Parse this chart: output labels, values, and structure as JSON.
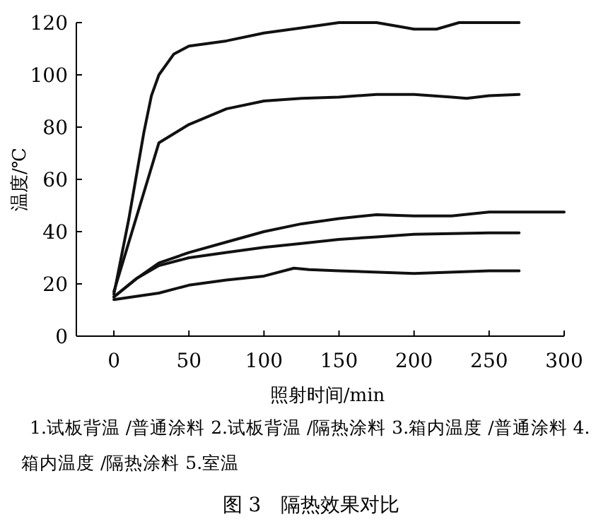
{
  "chart_data": {
    "type": "line",
    "title": "图 3　隔热效果对比",
    "xlabel": "照射时间/min",
    "ylabel": "温度/℃",
    "annotations": [
      "1.试板背温 /普通涂料 2.试板背温 /隔热涂料 3.箱内温度 /普通涂料 4.箱内温度 /隔热涂料 5.室温"
    ],
    "xlim": [
      -25,
      300
    ],
    "xticks": [
      0,
      50,
      100,
      150,
      200,
      250,
      300
    ],
    "ylim": [
      0,
      120
    ],
    "yticks": [
      0,
      20,
      40,
      60,
      80,
      100,
      120
    ],
    "grid": false,
    "marker": "none",
    "line_style": "solid",
    "series": [
      {
        "color": "#111111",
        "x": [
          0,
          10,
          20,
          25,
          30,
          40,
          50,
          75,
          100,
          125,
          150,
          175,
          190,
          200,
          215,
          230,
          250,
          270
        ],
        "values": [
          16,
          45,
          78,
          92,
          100,
          108,
          111,
          113,
          116,
          118,
          120,
          120,
          118.5,
          117.5,
          117.5,
          120,
          120,
          120
        ]
      },
      {
        "color": "#111111",
        "x": [
          0,
          30,
          50,
          75,
          100,
          125,
          150,
          175,
          200,
          225,
          235,
          250,
          270
        ],
        "values": [
          17,
          74,
          81,
          87,
          90,
          91,
          91.5,
          92.5,
          92.5,
          91.5,
          91,
          92,
          92.5
        ]
      },
      {
        "color": "#111111",
        "x": [
          0,
          15,
          30,
          50,
          75,
          100,
          125,
          150,
          175,
          200,
          225,
          250,
          300
        ],
        "values": [
          15,
          22,
          28,
          32,
          36,
          40,
          43,
          45,
          46.5,
          46,
          46,
          47.5,
          47.5
        ]
      },
      {
        "color": "#111111",
        "x": [
          0,
          15,
          30,
          50,
          75,
          100,
          125,
          150,
          175,
          200,
          250,
          270
        ],
        "values": [
          15,
          22,
          27,
          30,
          32,
          34,
          35.5,
          37,
          38,
          39,
          39.5,
          39.5
        ]
      },
      {
        "color": "#111111",
        "x": [
          0,
          30,
          50,
          75,
          100,
          120,
          130,
          150,
          200,
          250,
          270
        ],
        "values": [
          14,
          16.5,
          19.5,
          21.5,
          23,
          26,
          25.5,
          25,
          24,
          25,
          25
        ]
      }
    ]
  }
}
